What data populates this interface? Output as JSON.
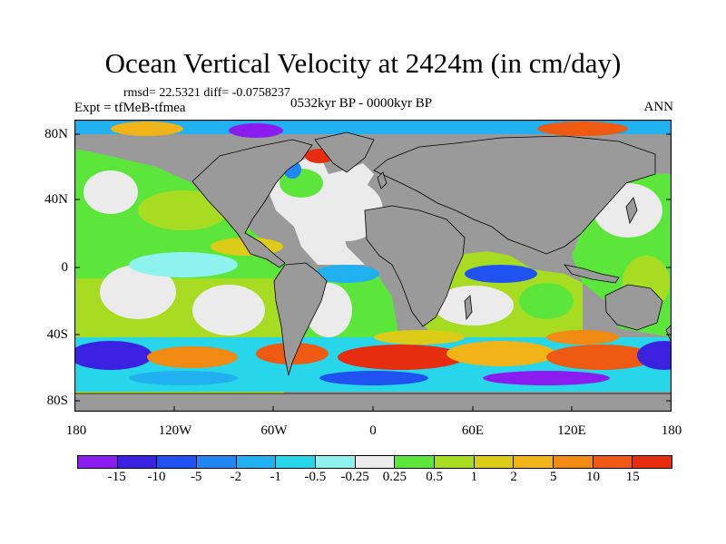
{
  "title": "Ocean Vertical Velocity at 2424m (in cm/day)",
  "stats": "rmsd= 22.5321 diff= -0.0758237",
  "expt": "Expt = tfMeB-tfmea",
  "period": "0532kyr BP - 0000kyr BP",
  "season": "ANN",
  "lat_labels": [
    "80N",
    "40N",
    "0",
    "40S",
    "80S"
  ],
  "lon_labels": [
    "180",
    "120W",
    "60W",
    "0",
    "60E",
    "120E",
    "180"
  ],
  "colorbar": {
    "labels": [
      "-15",
      "-10",
      "-5",
      "-2",
      "-1",
      "-0.5",
      "-0.25",
      "0.25",
      "0.5",
      "1",
      "2",
      "5",
      "10",
      "15"
    ],
    "colors": [
      "#8b1cf0",
      "#3a22e0",
      "#1f52f0",
      "#1f86f2",
      "#21b0f0",
      "#27d6e8",
      "#8ef2ee",
      "#ebebeb",
      "#5ce63c",
      "#a8dc22",
      "#dccc18",
      "#f0b418",
      "#f08a12",
      "#ee5a12",
      "#e62d10"
    ]
  },
  "land_color": "#9a9a9a"
}
